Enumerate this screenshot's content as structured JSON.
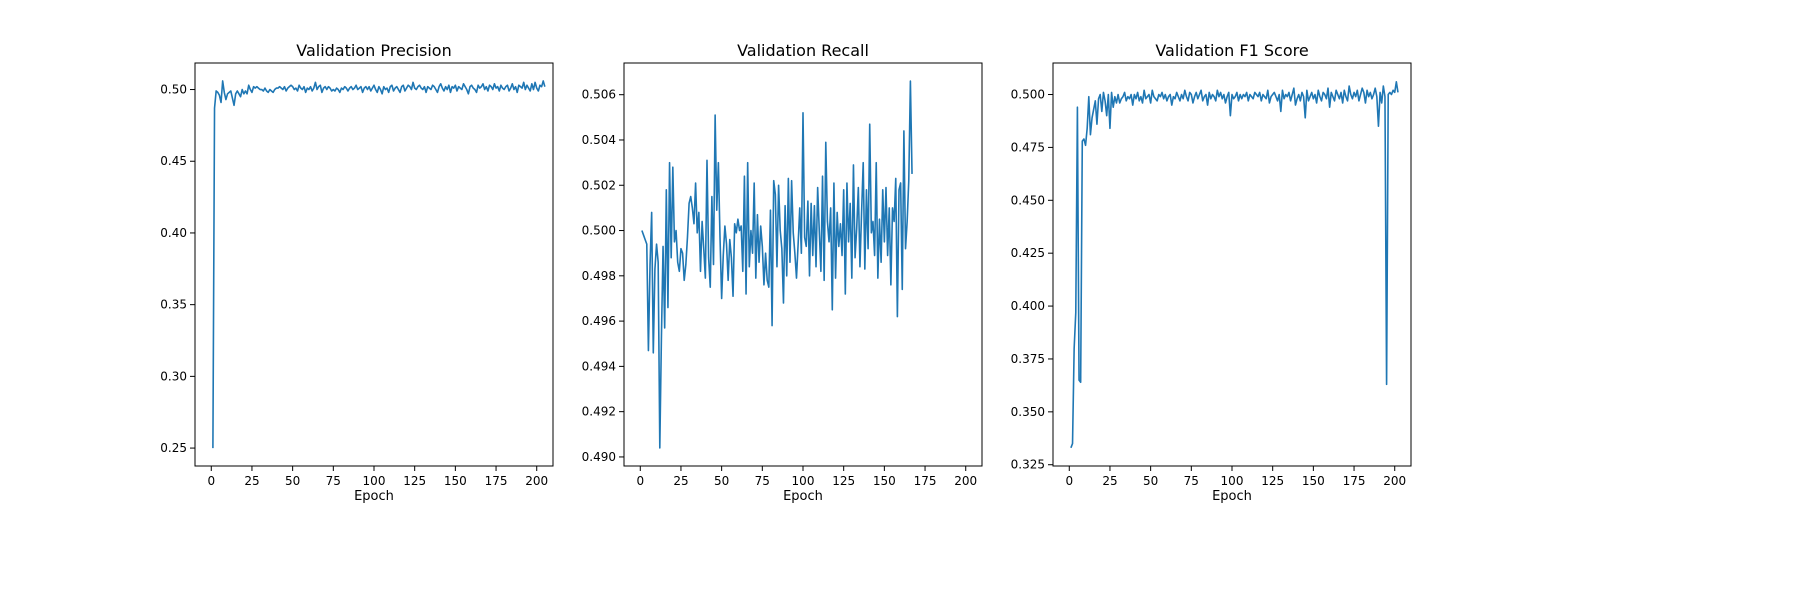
{
  "chart_data": [
    {
      "type": "line",
      "title": "Validation Precision",
      "xlabel": "Epoch",
      "ylabel": "",
      "xlim": [
        -10,
        210
      ],
      "ylim": [
        0.2375,
        0.5185
      ],
      "xticks": [
        0,
        25,
        50,
        75,
        100,
        125,
        150,
        175,
        200
      ],
      "yticks": [
        0.25,
        0.3,
        0.35,
        0.4,
        0.45,
        0.5
      ],
      "ytick_decimals": 2,
      "color": "#1f77b4",
      "x_start": 1,
      "values": [
        0.25,
        0.487,
        0.499,
        0.498,
        0.496,
        0.491,
        0.506,
        0.498,
        0.493,
        0.497,
        0.498,
        0.499,
        0.494,
        0.489,
        0.497,
        0.499,
        0.497,
        0.495,
        0.5,
        0.497,
        0.499,
        0.497,
        0.503,
        0.5,
        0.498,
        0.502,
        0.501,
        0.502,
        0.501,
        0.5,
        0.5,
        0.499,
        0.501,
        0.499,
        0.498,
        0.5,
        0.499,
        0.498,
        0.5,
        0.501,
        0.501,
        0.502,
        0.501,
        0.5,
        0.502,
        0.499,
        0.501,
        0.502,
        0.503,
        0.502,
        0.5,
        0.501,
        0.499,
        0.503,
        0.501,
        0.5,
        0.502,
        0.498,
        0.501,
        0.5,
        0.502,
        0.499,
        0.501,
        0.505,
        0.5,
        0.502,
        0.503,
        0.498,
        0.501,
        0.502,
        0.5,
        0.502,
        0.501,
        0.499,
        0.5,
        0.499,
        0.501,
        0.5,
        0.498,
        0.501,
        0.5,
        0.502,
        0.501,
        0.499,
        0.501,
        0.502,
        0.5,
        0.501,
        0.503,
        0.5,
        0.501,
        0.502,
        0.498,
        0.501,
        0.502,
        0.5,
        0.502,
        0.499,
        0.501,
        0.503,
        0.5,
        0.498,
        0.502,
        0.5,
        0.497,
        0.502,
        0.5,
        0.501,
        0.498,
        0.502,
        0.503,
        0.499,
        0.501,
        0.502,
        0.5,
        0.498,
        0.502,
        0.503,
        0.499,
        0.501,
        0.503,
        0.502,
        0.5,
        0.505,
        0.501,
        0.5,
        0.502,
        0.503,
        0.501,
        0.5,
        0.502,
        0.498,
        0.502,
        0.501,
        0.5,
        0.503,
        0.502,
        0.5,
        0.498,
        0.502,
        0.504,
        0.501,
        0.499,
        0.502,
        0.5,
        0.503,
        0.498,
        0.502,
        0.501,
        0.503,
        0.499,
        0.502,
        0.501,
        0.5,
        0.504,
        0.502,
        0.5,
        0.497,
        0.502,
        0.503,
        0.501,
        0.5,
        0.498,
        0.503,
        0.501,
        0.502,
        0.504,
        0.5,
        0.502,
        0.499,
        0.503,
        0.502,
        0.5,
        0.504,
        0.501,
        0.502,
        0.499,
        0.503,
        0.501,
        0.5,
        0.502,
        0.503,
        0.499,
        0.501,
        0.504,
        0.5,
        0.502,
        0.498,
        0.503,
        0.502,
        0.501,
        0.505,
        0.5,
        0.503,
        0.501,
        0.499,
        0.504,
        0.5,
        0.505,
        0.501,
        0.499,
        0.503,
        0.502,
        0.506,
        0.502
      ]
    },
    {
      "type": "line",
      "title": "Validation Recall",
      "xlabel": "Epoch",
      "ylabel": "",
      "xlim": [
        -10,
        210
      ],
      "ylim": [
        0.4896,
        0.5074
      ],
      "xticks": [
        0,
        25,
        50,
        75,
        100,
        125,
        150,
        175,
        200
      ],
      "yticks": [
        0.49,
        0.492,
        0.494,
        0.496,
        0.498,
        0.5,
        0.502,
        0.504,
        0.506
      ],
      "ytick_decimals": 3,
      "color": "#1f77b4",
      "x_start": 1,
      "values": [
        0.5,
        0.4998,
        0.4996,
        0.4994,
        0.4947,
        0.4985,
        0.5008,
        0.4946,
        0.4983,
        0.4994,
        0.4986,
        0.4904,
        0.4953,
        0.4993,
        0.4957,
        0.5018,
        0.4966,
        0.503,
        0.4988,
        0.5028,
        0.4995,
        0.5,
        0.4986,
        0.4982,
        0.4992,
        0.499,
        0.4978,
        0.4985,
        0.4997,
        0.5012,
        0.5015,
        0.501,
        0.5003,
        0.5021,
        0.4999,
        0.5008,
        0.4982,
        0.5004,
        0.4992,
        0.4979,
        0.5031,
        0.4988,
        0.4975,
        0.5015,
        0.4985,
        0.5051,
        0.5009,
        0.503,
        0.4997,
        0.497,
        0.4989,
        0.5002,
        0.4994,
        0.4978,
        0.4996,
        0.4988,
        0.4971,
        0.5003,
        0.4999,
        0.5005,
        0.5,
        0.5002,
        0.4982,
        0.5024,
        0.4972,
        0.503,
        0.4984,
        0.5,
        0.499,
        0.5021,
        0.4979,
        0.5007,
        0.4986,
        0.5002,
        0.4993,
        0.4976,
        0.499,
        0.4978,
        0.4975,
        0.5009,
        0.4958,
        0.5022,
        0.5016,
        0.4984,
        0.502,
        0.5,
        0.4992,
        0.4968,
        0.5011,
        0.498,
        0.5023,
        0.4986,
        0.5022,
        0.4999,
        0.499,
        0.4979,
        0.4994,
        0.501,
        0.499,
        0.5052,
        0.4997,
        0.4993,
        0.5013,
        0.498,
        0.5012,
        0.4989,
        0.5011,
        0.4984,
        0.5019,
        0.5,
        0.4982,
        0.5024,
        0.4978,
        0.5039,
        0.5004,
        0.4995,
        0.501,
        0.4965,
        0.5021,
        0.4979,
        0.5008,
        0.4993,
        0.5003,
        0.4989,
        0.5018,
        0.4972,
        0.5021,
        0.4995,
        0.5012,
        0.4979,
        0.5029,
        0.4988,
        0.5001,
        0.5019,
        0.4984,
        0.5008,
        0.503,
        0.4983,
        0.5018,
        0.4992,
        0.5047,
        0.4999,
        0.5004,
        0.4989,
        0.503,
        0.4979,
        0.5005,
        0.4986,
        0.5018,
        0.4995,
        0.5019,
        0.4989,
        0.501,
        0.4976,
        0.501,
        0.5004,
        0.5023,
        0.4962,
        0.5018,
        0.5021,
        0.4974,
        0.5044,
        0.4992,
        0.5004,
        0.5022,
        0.5066,
        0.5025
      ]
    },
    {
      "type": "line",
      "title": "Validation F1 Score",
      "xlabel": "Epoch",
      "ylabel": "",
      "xlim": [
        -10,
        210
      ],
      "ylim": [
        0.3244,
        0.5149
      ],
      "xticks": [
        0,
        25,
        50,
        75,
        100,
        125,
        150,
        175,
        200
      ],
      "yticks": [
        0.325,
        0.35,
        0.375,
        0.4,
        0.425,
        0.45,
        0.475,
        0.5
      ],
      "ytick_decimals": 3,
      "color": "#1f77b4",
      "x_start": 1,
      "values": [
        0.333,
        0.335,
        0.38,
        0.397,
        0.494,
        0.365,
        0.364,
        0.478,
        0.479,
        0.476,
        0.484,
        0.499,
        0.481,
        0.489,
        0.493,
        0.497,
        0.486,
        0.498,
        0.5,
        0.492,
        0.501,
        0.497,
        0.49,
        0.5,
        0.484,
        0.501,
        0.494,
        0.499,
        0.496,
        0.5,
        0.496,
        0.498,
        0.499,
        0.501,
        0.497,
        0.499,
        0.498,
        0.5,
        0.495,
        0.5,
        0.498,
        0.501,
        0.497,
        0.499,
        0.496,
        0.502,
        0.498,
        0.499,
        0.5,
        0.496,
        0.502,
        0.499,
        0.498,
        0.497,
        0.5,
        0.499,
        0.501,
        0.498,
        0.5,
        0.497,
        0.499,
        0.5,
        0.495,
        0.499,
        0.498,
        0.501,
        0.499,
        0.497,
        0.5,
        0.498,
        0.502,
        0.499,
        0.497,
        0.501,
        0.5,
        0.496,
        0.499,
        0.501,
        0.498,
        0.5,
        0.502,
        0.497,
        0.499,
        0.5,
        0.495,
        0.501,
        0.498,
        0.5,
        0.499,
        0.497,
        0.502,
        0.499,
        0.501,
        0.498,
        0.5,
        0.496,
        0.499,
        0.501,
        0.49,
        0.5,
        0.498,
        0.499,
        0.501,
        0.497,
        0.5,
        0.498,
        0.5,
        0.499,
        0.501,
        0.497,
        0.5,
        0.499,
        0.498,
        0.501,
        0.5,
        0.499,
        0.501,
        0.497,
        0.5,
        0.499,
        0.498,
        0.502,
        0.496,
        0.499,
        0.5,
        0.501,
        0.499,
        0.497,
        0.5,
        0.492,
        0.502,
        0.498,
        0.5,
        0.499,
        0.501,
        0.497,
        0.5,
        0.503,
        0.495,
        0.498,
        0.5,
        0.497,
        0.501,
        0.499,
        0.489,
        0.502,
        0.497,
        0.499,
        0.501,
        0.498,
        0.5,
        0.496,
        0.502,
        0.499,
        0.497,
        0.501,
        0.5,
        0.498,
        0.503,
        0.494,
        0.501,
        0.499,
        0.497,
        0.502,
        0.5,
        0.498,
        0.501,
        0.496,
        0.502,
        0.499,
        0.497,
        0.504,
        0.5,
        0.498,
        0.501,
        0.499,
        0.502,
        0.497,
        0.5,
        0.503,
        0.501,
        0.496,
        0.502,
        0.499,
        0.501,
        0.498,
        0.5,
        0.503,
        0.499,
        0.485,
        0.501,
        0.496,
        0.504,
        0.499,
        0.363,
        0.5,
        0.501,
        0.5,
        0.502,
        0.501,
        0.506,
        0.501
      ]
    }
  ]
}
